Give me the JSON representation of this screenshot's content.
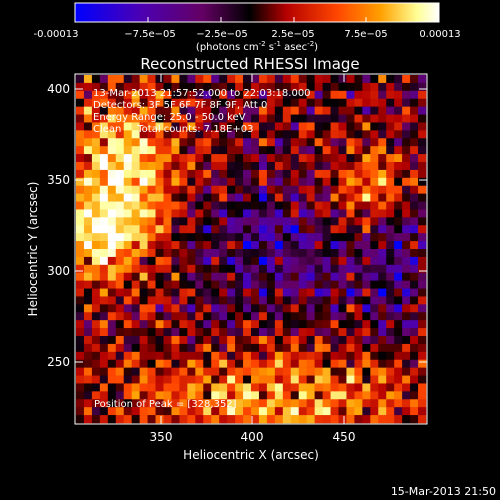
{
  "colorbar": {
    "tick_labels": [
      "-0.00013",
      "−7.5e−05",
      "−2.5e−05",
      "2.5e−05",
      "7.5e−05",
      "0.00013"
    ],
    "units_prefix": "(photons cm",
    "units_exp1": "-2",
    "units_mid": " s",
    "units_exp2": "-1",
    "units_mid2": " asec",
    "units_exp3": "-2",
    "units_suffix": ")",
    "colormap": [
      "#0000ff",
      "#4b00b4",
      "#640064",
      "#000000",
      "#b40000",
      "#ff4600",
      "#ffa000",
      "#ffff96",
      "#ffffff"
    ]
  },
  "plot": {
    "title": "Reconstructed RHESSI Image",
    "xlabel": "Heliocentric X (arcsec)",
    "ylabel": "Heliocentric Y (arcsec)",
    "x_ticks": [
      "350",
      "400",
      "450"
    ],
    "y_ticks": [
      "400",
      "350",
      "300",
      "250"
    ],
    "x_range": [
      300,
      490
    ],
    "y_range": [
      215,
      408
    ],
    "info_lines": [
      "13-Mar-2013 21:57:52.000 to 22:03:18.000",
      "Detectors: 3F 5F 6F 7F 8F 9F, Att 0",
      "Energy Range: 25.0 - 50.0 keV",
      "Clean     Total counts: 7.18E+03"
    ],
    "peak_label": "Position of Peak = [328,352]"
  },
  "footer": {
    "timestamp": "15-Mar-2013 21:50"
  }
}
